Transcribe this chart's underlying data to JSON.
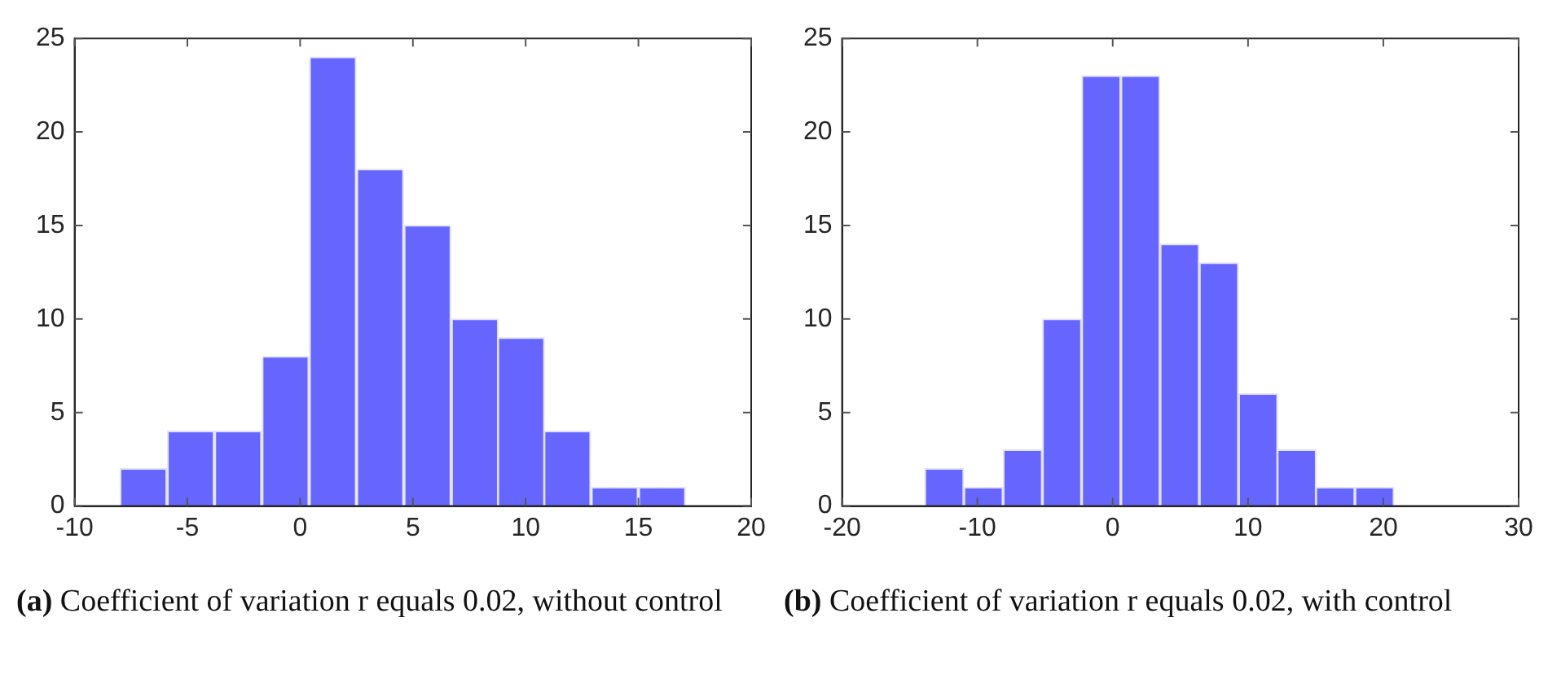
{
  "chart_data": [
    {
      "type": "histogram",
      "bins": [
        -8.0,
        -5.9,
        -3.8,
        -1.7,
        0.4,
        2.5,
        4.6,
        6.7,
        8.8,
        10.8,
        12.9,
        15.0,
        17.1
      ],
      "values": [
        2,
        4,
        4,
        8,
        24,
        18,
        15,
        10,
        9,
        4,
        1,
        1
      ],
      "color": "#6666ff",
      "xlim": [
        -10,
        20
      ],
      "xticks": [
        -10,
        -5,
        0,
        5,
        10,
        15,
        20
      ],
      "ylim": [
        0,
        25
      ],
      "yticks": [
        0,
        5,
        10,
        15,
        20,
        25
      ],
      "grid": false,
      "annotations": [
        "(a) Coefficient of variation r equals 0.02, without control"
      ]
    },
    {
      "type": "histogram",
      "bins": [
        -13.9,
        -11.0,
        -8.1,
        -5.2,
        -2.3,
        0.6,
        3.5,
        6.4,
        9.3,
        12.2,
        15.0,
        17.9,
        20.8
      ],
      "values": [
        2,
        1,
        3,
        10,
        23,
        23,
        14,
        13,
        6,
        3,
        1,
        1
      ],
      "color": "#6666ff",
      "xlim": [
        -20,
        30
      ],
      "xticks": [
        -20,
        -10,
        0,
        10,
        20,
        30
      ],
      "ylim": [
        0,
        25
      ],
      "yticks": [
        0,
        5,
        10,
        15,
        20,
        25
      ],
      "grid": false,
      "annotations": [
        "(b) Coefficient of variation r equals 0.02, with control"
      ]
    }
  ]
}
